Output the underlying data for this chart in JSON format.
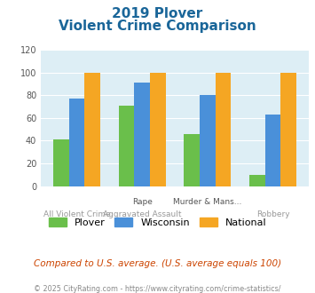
{
  "title_line1": "2019 Plover",
  "title_line2": "Violent Crime Comparison",
  "top_labels": [
    "",
    "Rape",
    "Murder & Mans...",
    ""
  ],
  "bottom_labels": [
    "All Violent Crime",
    "Aggravated Assault",
    "",
    "Robbery"
  ],
  "plover": [
    41,
    71,
    46,
    10
  ],
  "wisconsin": [
    77,
    91,
    80,
    63
  ],
  "national": [
    100,
    100,
    100,
    100
  ],
  "plover_color": "#6abf4b",
  "wisconsin_color": "#4a90d9",
  "national_color": "#f5a623",
  "ylim": [
    0,
    120
  ],
  "yticks": [
    0,
    20,
    40,
    60,
    80,
    100,
    120
  ],
  "bg_color": "#ddeef5",
  "fig_bg": "#ffffff",
  "title_color": "#1a6699",
  "footnote": "Compared to U.S. average. (U.S. average equals 100)",
  "footnote2": "© 2025 CityRating.com - https://www.cityrating.com/crime-statistics/",
  "footnote_color": "#cc4400",
  "footnote2_color": "#888888"
}
